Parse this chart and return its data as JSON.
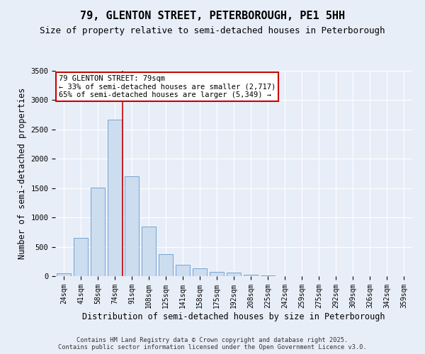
{
  "title_line1": "79, GLENTON STREET, PETERBOROUGH, PE1 5HH",
  "title_line2": "Size of property relative to semi-detached houses in Peterborough",
  "xlabel": "Distribution of semi-detached houses by size in Peterborough",
  "ylabel": "Number of semi-detached properties",
  "categories": [
    "24sqm",
    "41sqm",
    "58sqm",
    "74sqm",
    "91sqm",
    "108sqm",
    "125sqm",
    "141sqm",
    "158sqm",
    "175sqm",
    "192sqm",
    "208sqm",
    "225sqm",
    "242sqm",
    "259sqm",
    "275sqm",
    "292sqm",
    "309sqm",
    "326sqm",
    "342sqm",
    "359sqm"
  ],
  "values": [
    50,
    650,
    1510,
    2670,
    1700,
    840,
    370,
    190,
    130,
    70,
    55,
    30,
    15,
    5,
    0,
    0,
    0,
    0,
    0,
    0,
    0
  ],
  "bar_color": "#ccddf0",
  "bar_edge_color": "#6699cc",
  "vline_x": 3.45,
  "vline_color": "#cc0000",
  "annotation_title": "79 GLENTON STREET: 79sqm",
  "annotation_line2": "← 33% of semi-detached houses are smaller (2,717)",
  "annotation_line3": "65% of semi-detached houses are larger (5,349) →",
  "annotation_box_color": "#ffffff",
  "annotation_box_edge": "#cc0000",
  "ylim": [
    0,
    3500
  ],
  "background_color": "#e8eef8",
  "footer_line1": "Contains HM Land Registry data © Crown copyright and database right 2025.",
  "footer_line2": "Contains public sector information licensed under the Open Government Licence v3.0.",
  "grid_color": "#ffffff",
  "title_fontsize": 11,
  "subtitle_fontsize": 9,
  "tick_fontsize": 7,
  "ylabel_fontsize": 8.5,
  "ann_fontsize": 7.5
}
